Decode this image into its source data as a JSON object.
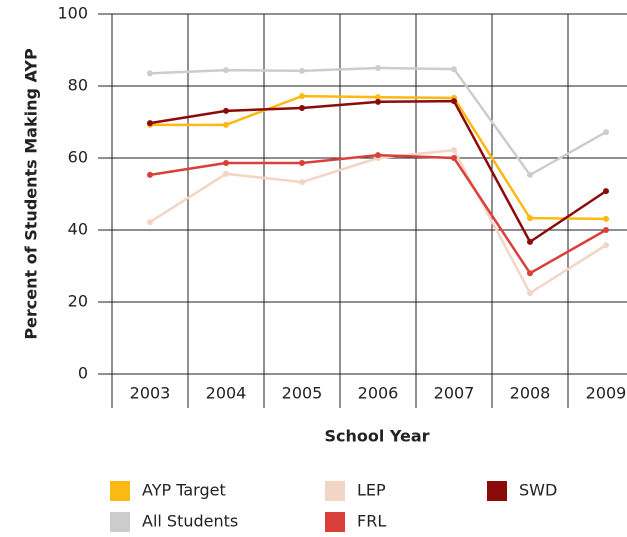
{
  "chart_data": {
    "type": "line",
    "x_label": "School Year",
    "y_label": "Percent of Students Making AYP",
    "categories": [
      "2003",
      "2004",
      "2005",
      "2006",
      "2007",
      "2008",
      "2009"
    ],
    "series": [
      {
        "name": "AYP Target",
        "color": "#fdb913",
        "values": [
          69.2,
          69.2,
          77.2,
          76.9,
          76.7,
          43.3,
          43.1
        ]
      },
      {
        "name": "All Students",
        "color": "#cccccc",
        "values": [
          83.5,
          84.4,
          84.2,
          85,
          84.7,
          55.3,
          67.2
        ]
      },
      {
        "name": "LEP",
        "color": "#f2d5c4",
        "values": [
          42.2,
          55.6,
          53.3,
          60,
          62.2,
          22.5,
          35.8
        ]
      },
      {
        "name": "FRL",
        "color": "#d9403a",
        "values": [
          55.3,
          58.6,
          58.6,
          60.8,
          60,
          28,
          40
        ]
      },
      {
        "name": "SWD",
        "color": "#8b0a0a",
        "values": [
          69.7,
          73.1,
          73.9,
          75.6,
          75.8,
          36.7,
          50.8
        ]
      }
    ],
    "ylim": [
      0,
      100
    ],
    "yticks": [
      0,
      20,
      40,
      60,
      80,
      100
    ],
    "grid": true
  }
}
